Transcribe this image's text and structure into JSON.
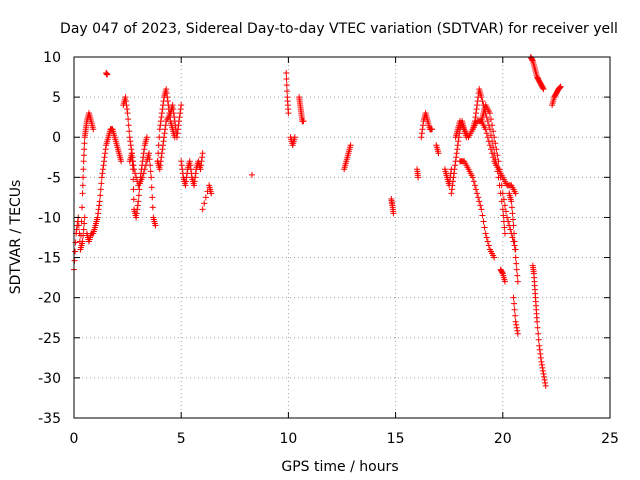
{
  "chart_data": {
    "type": "scatter",
    "title": "Day 047 of 2023, Sidereal Day-to-day VTEC variation (SDTVAR) for receiver yell",
    "xlabel": "GPS time / hours",
    "ylabel": "SDTVAR / TECUs",
    "xlim": [
      0,
      25
    ],
    "ylim": [
      -35,
      10
    ],
    "xticks": [
      0,
      5,
      10,
      15,
      20,
      25
    ],
    "yticks": [
      -35,
      -30,
      -25,
      -20,
      -15,
      -10,
      -5,
      0,
      5,
      10
    ],
    "grid": true,
    "marker": "plus",
    "color": "#ff0000",
    "segments": [
      {
        "x": [
          0.0,
          0.1,
          0.2,
          0.3,
          0.4,
          0.5
        ],
        "y": [
          -16.5,
          -12,
          -10,
          -14,
          -13,
          -10
        ]
      },
      {
        "x": [
          0.3,
          0.4,
          0.45,
          0.5,
          0.55,
          0.6,
          0.7,
          0.8,
          0.9
        ],
        "y": [
          -14,
          -7,
          -3,
          0,
          1,
          2,
          3,
          2,
          1
        ]
      },
      {
        "x": [
          0.6,
          0.7,
          0.8,
          0.9,
          1.0,
          1.1,
          1.2,
          1.3,
          1.4,
          1.5,
          1.6,
          1.7,
          1.8,
          1.9,
          2.0,
          2.1,
          2.2
        ],
        "y": [
          -12,
          -13,
          -12,
          -12,
          -11,
          -10,
          -8,
          -5,
          -3,
          -1,
          0,
          1,
          1,
          0,
          -1,
          -2,
          -3
        ]
      },
      {
        "x": [
          1.5,
          1.55
        ],
        "y": [
          8,
          7.8
        ]
      },
      {
        "x": [
          2.3,
          2.4,
          2.5,
          2.6,
          2.7,
          2.75,
          2.8,
          2.9,
          3.0,
          3.1,
          3.2,
          3.3,
          3.4
        ],
        "y": [
          4,
          5,
          3,
          0,
          -2,
          -4,
          -9,
          -10,
          -8,
          -5,
          -3,
          -1,
          0
        ]
      },
      {
        "x": [
          2.6,
          2.7,
          2.8,
          3.0,
          3.2,
          3.4,
          3.5,
          3.6,
          3.7,
          3.8
        ],
        "y": [
          -3,
          -2,
          -4,
          -6,
          -5,
          -3,
          -2,
          -5,
          -10,
          -11
        ]
      },
      {
        "x": [
          3.9,
          4.0,
          4.1,
          4.2,
          4.3,
          4.4,
          4.5,
          4.6,
          4.7
        ],
        "y": [
          -3,
          1,
          3,
          5,
          6,
          4,
          2,
          1,
          0
        ]
      },
      {
        "x": [
          3.9,
          4.0,
          4.1,
          4.2,
          4.3,
          4.5,
          4.6,
          4.7,
          4.8,
          4.9,
          5.0
        ],
        "y": [
          -3,
          -4,
          -2,
          0,
          2,
          3,
          4,
          2,
          0,
          2,
          4
        ]
      },
      {
        "x": [
          5.0,
          5.1,
          5.2,
          5.3,
          5.4,
          5.5,
          5.6,
          5.7,
          5.8,
          5.9,
          6.0
        ],
        "y": [
          -3,
          -5,
          -6,
          -4,
          -3,
          -5,
          -6,
          -4,
          -3,
          -4,
          -2
        ]
      },
      {
        "x": [
          6.0,
          6.3,
          6.4
        ],
        "y": [
          -9,
          -6,
          -7
        ]
      },
      {
        "x": [
          8.3
        ],
        "y": [
          -4.7
        ]
      },
      {
        "x": [
          9.9,
          9.95,
          10.0
        ],
        "y": [
          8,
          5,
          3
        ]
      },
      {
        "x": [
          10.1,
          10.2,
          10.3
        ],
        "y": [
          0,
          -1,
          0
        ]
      },
      {
        "x": [
          10.5,
          10.55,
          10.6,
          10.65,
          10.7
        ],
        "y": [
          5,
          4,
          3,
          2,
          2
        ]
      },
      {
        "x": [
          12.6,
          12.7,
          12.8,
          12.9
        ],
        "y": [
          -4,
          -3,
          -2,
          -1
        ]
      },
      {
        "x": [
          14.8,
          14.85,
          14.9
        ],
        "y": [
          -7.7,
          -8.5,
          -9.5
        ]
      },
      {
        "x": [
          16.0,
          16.05
        ],
        "y": [
          -4,
          -5
        ]
      },
      {
        "x": [
          16.2,
          16.3,
          16.4,
          16.5,
          16.6,
          16.7
        ],
        "y": [
          0,
          2,
          3,
          2,
          1,
          1
        ]
      },
      {
        "x": [
          16.9,
          17.0
        ],
        "y": [
          -1,
          -2
        ]
      },
      {
        "x": [
          17.3,
          17.4,
          17.5,
          17.6
        ],
        "y": [
          -4,
          -5,
          -6,
          -4
        ]
      },
      {
        "x": [
          17.6,
          17.7,
          17.8,
          17.9,
          18.0,
          18.1,
          18.2,
          18.3
        ],
        "y": [
          -7,
          -5,
          -3,
          -1,
          1,
          2,
          1,
          0
        ]
      },
      {
        "x": [
          17.8,
          17.9,
          18.0,
          18.2,
          18.4,
          18.6,
          18.8,
          19.0,
          19.2,
          19.4,
          19.6,
          19.8,
          20.0,
          20.2,
          20.4,
          20.6
        ],
        "y": [
          0,
          1,
          2,
          1,
          0,
          1,
          2,
          2,
          1,
          -1,
          -3,
          -4,
          -5,
          -6,
          -6,
          -7
        ]
      },
      {
        "x": [
          18.0,
          18.2,
          18.4,
          18.6,
          18.8,
          19.0,
          19.2,
          19.4,
          19.6
        ],
        "y": [
          -3,
          -3,
          -4,
          -5,
          -7,
          -9,
          -12,
          -14,
          -15
        ]
      },
      {
        "x": [
          18.6,
          18.7,
          18.8,
          18.9,
          19.0,
          19.2,
          19.4,
          19.6,
          19.8,
          20.0,
          20.1
        ],
        "y": [
          1,
          2,
          4,
          6,
          5,
          3,
          1,
          -2,
          -5,
          -9,
          -12
        ]
      },
      {
        "x": [
          19.0,
          19.1,
          19.2,
          19.4,
          19.6,
          19.8,
          20.0,
          20.2,
          20.4,
          20.6
        ],
        "y": [
          2,
          3,
          4,
          3,
          0,
          -3,
          -7,
          -10,
          -12,
          -14
        ]
      },
      {
        "x": [
          19.9,
          20.0,
          20.1
        ],
        "y": [
          -16.5,
          -17,
          -18
        ]
      },
      {
        "x": [
          20.3,
          20.4,
          20.5,
          20.6,
          20.7
        ],
        "y": [
          -7,
          -8,
          -11,
          -15,
          -18
        ]
      },
      {
        "x": [
          20.5,
          20.6,
          20.7
        ],
        "y": [
          -20,
          -23,
          -24.5
        ]
      },
      {
        "x": [
          21.3,
          21.4,
          21.5,
          21.6,
          21.7,
          21.8,
          21.9
        ],
        "y": [
          10,
          9.5,
          8.5,
          7.5,
          7,
          6.5,
          6
        ]
      },
      {
        "x": [
          21.4,
          21.45,
          21.5,
          21.55,
          21.6,
          21.7,
          21.8,
          21.9,
          22.0
        ],
        "y": [
          -16,
          -17,
          -19,
          -21,
          -23,
          -26,
          -28,
          -29.5,
          -31
        ]
      },
      {
        "x": [
          22.3,
          22.4,
          22.5,
          22.6,
          22.7
        ],
        "y": [
          4,
          5,
          5.5,
          6,
          6.3
        ]
      }
    ]
  }
}
